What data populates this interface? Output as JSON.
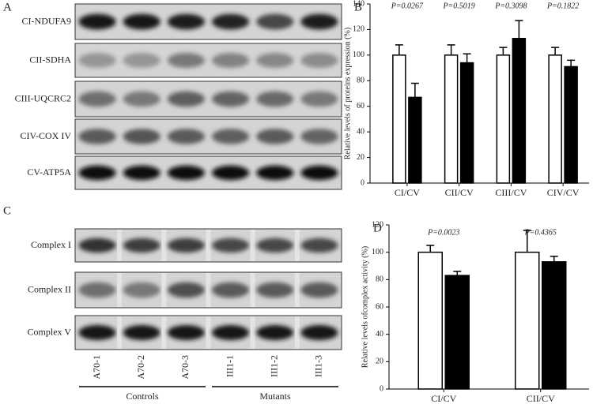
{
  "panel_a": {
    "letter": "A",
    "rows": [
      "CI-NDUFA9",
      "CII-SDHA",
      "CIII-UQCRC2",
      "CIV-COX IV",
      "CV-ATP5A"
    ]
  },
  "panel_c": {
    "letter": "C",
    "rows": [
      "Complex I",
      "Complex II",
      "Complex V"
    ],
    "lanes": [
      "A70-1",
      "A70-2",
      "A70-3",
      "III1-1",
      "III1-2",
      "III1-3"
    ],
    "groups": [
      "Controls",
      "Mutants"
    ]
  },
  "chart_data": [
    {
      "type": "bar",
      "letter": "B",
      "ylabel": "Relative levels of proteins expression (%)",
      "categories": [
        "CI/CV",
        "CII/CV",
        "CIII/CV",
        "CIV/CV"
      ],
      "annotations": [
        "P=0.0267",
        "P=0.5019",
        "P=0.3098",
        "P=0.1822"
      ],
      "series": [
        {
          "color": "#ffffff",
          "values": [
            100,
            100,
            100,
            100
          ],
          "errors": [
            8,
            8,
            6,
            6
          ]
        },
        {
          "color": "#000000",
          "values": [
            67,
            94,
            113,
            91
          ],
          "errors": [
            11,
            7,
            14,
            5
          ]
        }
      ],
      "ylim": [
        0,
        140
      ],
      "yticks": [
        0,
        20,
        40,
        60,
        80,
        100,
        120,
        140
      ]
    },
    {
      "type": "bar",
      "letter": "D",
      "ylabel": "Relative levels ofcomplex activity (%)",
      "categories": [
        "CI/CV",
        "CII/CV"
      ],
      "annotations": [
        "P=0.0023",
        "P=0.4365"
      ],
      "series": [
        {
          "color": "#ffffff",
          "values": [
            100,
            100
          ],
          "errors": [
            5,
            16
          ]
        },
        {
          "color": "#000000",
          "values": [
            83,
            93
          ],
          "errors": [
            3,
            4
          ]
        }
      ],
      "ylim": [
        0,
        120
      ],
      "yticks": [
        0,
        20,
        40,
        60,
        80,
        100,
        120
      ]
    }
  ]
}
